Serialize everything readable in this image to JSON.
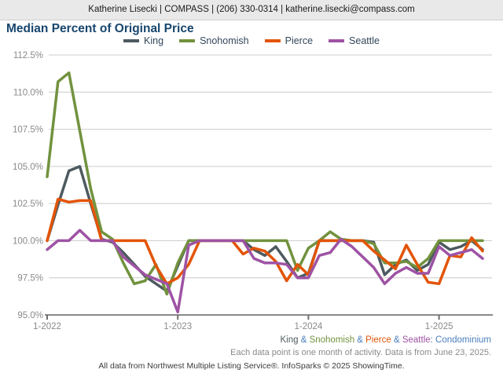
{
  "header": {
    "contact": "Katherine Lisecki | COMPASS | (206) 330-0314 | katherine.lisecki@compass.com"
  },
  "title": "Median Percent of Original Price",
  "colors": {
    "title": "#17466e",
    "king": "#4d5a5f",
    "snohomish": "#71923e",
    "pierce": "#e35407",
    "seattle": "#9e53a4",
    "caption_accent": "#4a7ebe",
    "grid": "#cccccc",
    "axis": "#8a8a8a",
    "axis_label": "#8a8a8a",
    "legend_label": "#33475b"
  },
  "footer": {
    "caption": {
      "king": "King",
      "sep1": " & ",
      "snohomish": "Snohomish",
      "sep2": " & ",
      "pierce": "Pierce",
      "sep3": " & ",
      "seattle": "Seattle",
      "property_type": ": Condominium"
    },
    "note": "Each data point is one month of activity. Data is from June 23, 2025.",
    "attribution": "All data from Northwest Multiple Listing Service®. InfoSparks © 2025 ShowingTime."
  },
  "chart_data": {
    "type": "line",
    "title": "Median Percent of Original Price",
    "x_start": "1-2022",
    "x_end": "5-2025",
    "points_per_series": 41,
    "x_interval": "month",
    "x_tick_labels": [
      "1-2022",
      "1-2023",
      "1-2024",
      "1-2025"
    ],
    "x_tick_indices": [
      0,
      12,
      24,
      36
    ],
    "ylim": [
      95.0,
      112.5
    ],
    "y_ticks": [
      95.0,
      97.5,
      100.0,
      102.5,
      105.0,
      107.5,
      110.0,
      112.5
    ],
    "y_tick_labels": [
      "95.0%",
      "97.5%",
      "100.0%",
      "102.5%",
      "105.0%",
      "107.5%",
      "110.0%",
      "112.5%"
    ],
    "grid": "horizontal",
    "legend_position": "top",
    "series": [
      {
        "name": "King",
        "color": "#4d5a5f",
        "values": [
          100.0,
          102.4,
          104.7,
          105.0,
          102.5,
          100.1,
          99.9,
          99.2,
          98.4,
          97.6,
          97.1,
          96.6,
          98.3,
          100.0,
          100.0,
          100.0,
          100.0,
          100.0,
          100.0,
          99.4,
          99.0,
          99.6,
          98.6,
          97.5,
          97.8,
          100.0,
          100.0,
          100.0,
          100.0,
          100.0,
          99.9,
          97.7,
          98.4,
          98.7,
          98.0,
          98.4,
          99.9,
          99.4,
          99.6,
          100.0,
          99.4
        ]
      },
      {
        "name": "Snohomish",
        "color": "#71923e",
        "values": [
          104.3,
          110.7,
          111.3,
          107.4,
          103.5,
          100.6,
          100.1,
          98.5,
          97.1,
          97.3,
          98.4,
          96.4,
          98.5,
          100.0,
          100.0,
          100.0,
          100.0,
          100.0,
          100.0,
          100.0,
          100.0,
          100.0,
          100.0,
          98.0,
          99.5,
          100.0,
          100.6,
          100.1,
          100.0,
          100.0,
          99.8,
          98.5,
          98.5,
          98.6,
          98.2,
          98.8,
          100.0,
          100.0,
          100.0,
          100.0,
          100.0
        ]
      },
      {
        "name": "Pierce",
        "color": "#e35407",
        "values": [
          100.0,
          102.8,
          102.6,
          102.7,
          102.7,
          100.0,
          100.0,
          100.0,
          100.0,
          100.0,
          98.3,
          97.1,
          97.5,
          98.4,
          100.0,
          100.0,
          100.0,
          100.0,
          99.1,
          99.5,
          99.3,
          98.6,
          97.3,
          98.4,
          97.7,
          100.0,
          100.0,
          100.0,
          100.0,
          100.0,
          99.3,
          98.7,
          98.1,
          99.7,
          98.4,
          97.2,
          97.1,
          99.0,
          98.9,
          100.2,
          99.3
        ]
      },
      {
        "name": "Seattle",
        "color": "#9e53a4",
        "values": [
          99.4,
          100.0,
          100.0,
          100.7,
          100.0,
          100.0,
          100.0,
          98.9,
          98.3,
          97.7,
          97.4,
          97.1,
          95.2,
          99.7,
          100.0,
          100.0,
          100.0,
          100.0,
          100.0,
          98.8,
          98.5,
          98.5,
          98.4,
          97.5,
          97.5,
          99.0,
          99.2,
          100.1,
          99.6,
          98.9,
          98.2,
          97.1,
          97.8,
          98.2,
          97.8,
          97.8,
          99.6,
          99.0,
          99.2,
          99.4,
          98.8
        ]
      }
    ]
  }
}
